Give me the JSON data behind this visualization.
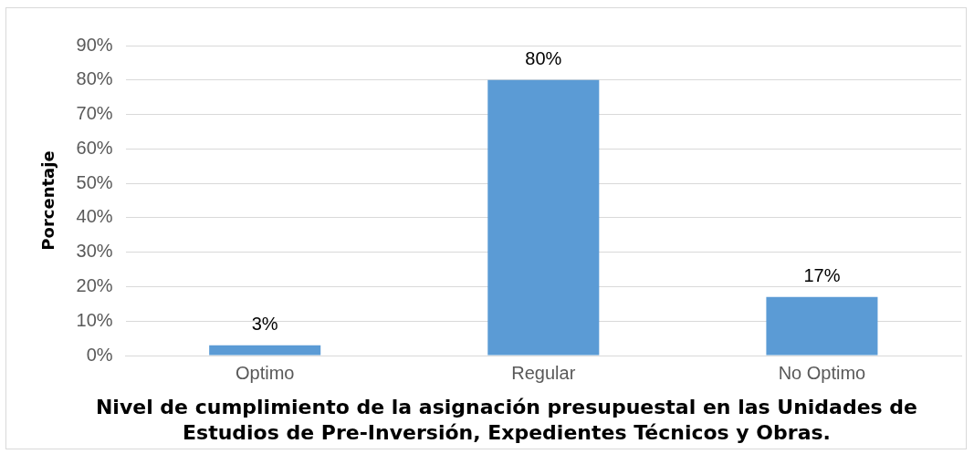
{
  "chart_data": {
    "type": "bar",
    "title": "Nivel de cumplimiento de la asignación presupuestal en las Unidades de Estudios de Pre-Inversión, Expedientes Técnicos y Obras.",
    "ylabel": "Porcentaje",
    "categories": [
      "Optimo",
      "Regular",
      "No Optimo"
    ],
    "values": [
      3,
      80,
      17
    ],
    "value_labels": [
      "3%",
      "80%",
      "17%"
    ],
    "color": "#5b9bd5",
    "ylim": [
      0,
      90
    ],
    "yticks": [
      {
        "value": 0,
        "label": "0%"
      },
      {
        "value": 10,
        "label": "10%"
      },
      {
        "value": 20,
        "label": "20%"
      },
      {
        "value": 30,
        "label": "30%"
      },
      {
        "value": 40,
        "label": "40%"
      },
      {
        "value": 50,
        "label": "50%"
      },
      {
        "value": 60,
        "label": "60%"
      },
      {
        "value": 70,
        "label": "70%"
      },
      {
        "value": 80,
        "label": "80%"
      },
      {
        "value": 90,
        "label": "90%"
      }
    ],
    "grid": "y",
    "legend": false
  }
}
